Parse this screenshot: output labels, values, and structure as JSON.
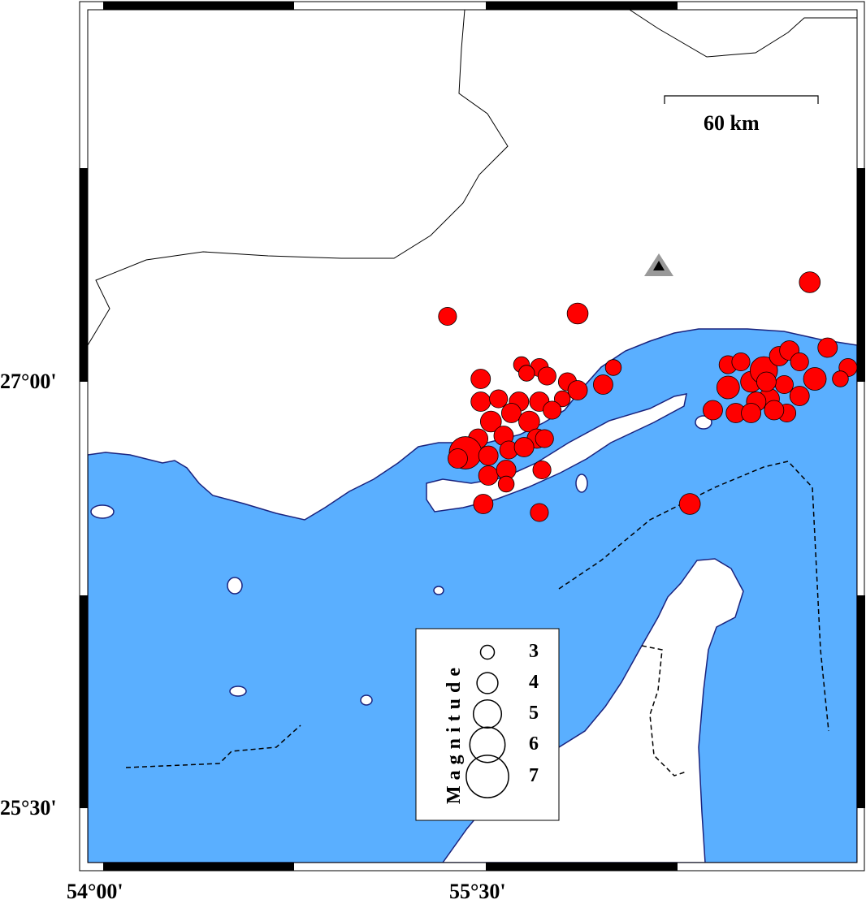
{
  "map": {
    "extent": {
      "lon": [
        53.94,
        56.96
      ],
      "lat": [
        25.31,
        28.31
      ]
    },
    "colors": {
      "water": "#5AAFFF",
      "land": "#FFFFFF",
      "coast": "#1a237e",
      "event": "#FF0000",
      "station": "#999999"
    },
    "axis_labels": {
      "lat": [
        {
          "value": 27.0,
          "text": "27°00'"
        },
        {
          "value": 25.5,
          "text": "25°30'"
        }
      ],
      "lon": [
        {
          "value": 54.0,
          "text": "54°00'"
        },
        {
          "value": 55.5,
          "text": "55°30'"
        }
      ]
    },
    "scale_bar": {
      "label": "60 km",
      "length_km": 60
    },
    "station": {
      "symbol": "triangle",
      "lon": 56.2,
      "lat": 27.41
    }
  },
  "legend": {
    "title": "Magnitude",
    "entries": [
      {
        "mag": 3,
        "label": "3"
      },
      {
        "mag": 4,
        "label": "4"
      },
      {
        "mag": 5,
        "label": "5"
      },
      {
        "mag": 6,
        "label": "6"
      },
      {
        "mag": 7,
        "label": "7"
      }
    ]
  },
  "events": [
    [
      55.35,
      27.23,
      3.6
    ],
    [
      55.86,
      27.24,
      4.0
    ],
    [
      56.77,
      27.35,
      4.0
    ],
    [
      55.48,
      27.01,
      3.8
    ],
    [
      55.64,
      27.06,
      3.3
    ],
    [
      55.71,
      27.05,
      3.6
    ],
    [
      55.66,
      27.03,
      3.3
    ],
    [
      55.74,
      27.02,
      3.6
    ],
    [
      55.82,
      27.0,
      3.6
    ],
    [
      55.86,
      26.97,
      3.8
    ],
    [
      55.96,
      26.99,
      3.8
    ],
    [
      56.0,
      27.05,
      3.3
    ],
    [
      55.8,
      26.94,
      3.3
    ],
    [
      55.48,
      26.93,
      3.8
    ],
    [
      55.55,
      26.94,
      3.6
    ],
    [
      55.63,
      26.93,
      3.8
    ],
    [
      55.71,
      26.93,
      3.8
    ],
    [
      55.6,
      26.89,
      3.8
    ],
    [
      55.52,
      26.86,
      4.0
    ],
    [
      55.67,
      26.86,
      4.0
    ],
    [
      55.76,
      26.9,
      3.6
    ],
    [
      55.57,
      26.81,
      3.8
    ],
    [
      55.7,
      26.8,
      3.8
    ],
    [
      55.47,
      26.8,
      3.8
    ],
    [
      55.42,
      26.75,
      5.6
    ],
    [
      55.39,
      26.73,
      3.8
    ],
    [
      55.51,
      26.74,
      3.8
    ],
    [
      55.59,
      26.76,
      3.6
    ],
    [
      55.65,
      26.77,
      3.8
    ],
    [
      55.73,
      26.8,
      3.6
    ],
    [
      55.51,
      26.67,
      3.8
    ],
    [
      55.58,
      26.69,
      3.8
    ],
    [
      55.58,
      26.64,
      3.3
    ],
    [
      55.72,
      26.69,
      3.6
    ],
    [
      55.49,
      26.57,
      3.8
    ],
    [
      55.71,
      26.54,
      3.6
    ],
    [
      56.3,
      26.57,
      4.0
    ],
    [
      56.39,
      26.9,
      3.8
    ],
    [
      56.45,
      27.06,
      3.6
    ],
    [
      56.5,
      27.07,
      3.6
    ],
    [
      56.45,
      26.98,
      4.25
    ],
    [
      56.54,
      27.0,
      4.0
    ],
    [
      56.59,
      27.04,
      4.9
    ],
    [
      56.65,
      27.09,
      3.8
    ],
    [
      56.69,
      27.11,
      3.8
    ],
    [
      56.73,
      27.07,
      3.6
    ],
    [
      56.79,
      27.01,
      4.25
    ],
    [
      56.84,
      27.12,
      3.8
    ],
    [
      56.92,
      27.05,
      3.6
    ],
    [
      56.89,
      27.01,
      3.3
    ],
    [
      56.73,
      26.95,
      3.8
    ],
    [
      56.68,
      26.89,
      3.6
    ],
    [
      56.61,
      26.94,
      4.0
    ],
    [
      56.56,
      26.93,
      3.8
    ],
    [
      56.48,
      26.89,
      3.8
    ],
    [
      56.54,
      26.89,
      3.8
    ],
    [
      56.63,
      26.9,
      3.8
    ],
    [
      56.67,
      26.99,
      3.6
    ],
    [
      56.6,
      27.0,
      3.8
    ]
  ]
}
